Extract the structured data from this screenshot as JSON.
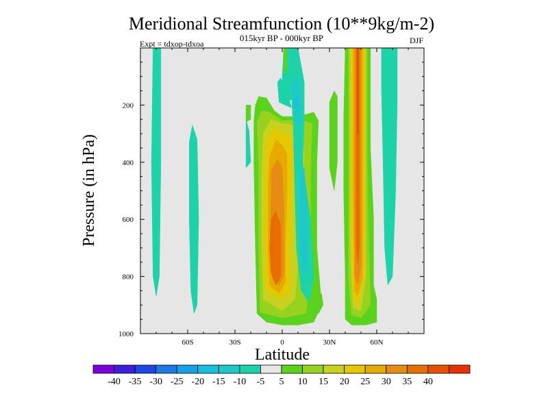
{
  "chart_data": {
    "type": "heatmap",
    "title": "Meridional Streamfunction (10**9kg/m-2)",
    "subtitle": "015kyr BP - 000kyr BP",
    "left_label": "Expt = tdxop-tdxoa",
    "right_label": "DJF",
    "xlabel": "Latitude",
    "ylabel": "Pressure (in hPa)",
    "xlim": [
      -90,
      90
    ],
    "ylim": [
      0,
      1000
    ],
    "y_reversed": true,
    "x_ticks": [
      {
        "value": -60,
        "label": "60S"
      },
      {
        "value": -30,
        "label": "30S"
      },
      {
        "value": 0,
        "label": "0"
      },
      {
        "value": 30,
        "label": "30N"
      },
      {
        "value": 60,
        "label": "60N"
      }
    ],
    "y_ticks": [
      {
        "value": 200,
        "label": "200"
      },
      {
        "value": 400,
        "label": "400"
      },
      {
        "value": 600,
        "label": "600"
      },
      {
        "value": 800,
        "label": "800"
      },
      {
        "value": 1000,
        "label": "1000"
      }
    ],
    "background_color": "#e6e6e6",
    "colorbar": {
      "colors": [
        "#7b00dc",
        "#3c1eda",
        "#1e46e6",
        "#1e78e6",
        "#14a0e6",
        "#19bedc",
        "#1ec8c8",
        "#1ed2aa",
        "#e6e6e6",
        "#5ad21e",
        "#96d21e",
        "#c8d21e",
        "#e6c800",
        "#e6aa00",
        "#e68c14",
        "#e66e00",
        "#e65000",
        "#e63200"
      ],
      "labels": [
        "-40",
        "-35",
        "-30",
        "-25",
        "-20",
        "-15",
        "-10",
        "-5",
        "5",
        "10",
        "15",
        "20",
        "25",
        "30",
        "35",
        "40"
      ]
    },
    "regions": [
      {
        "value": -7,
        "points": [
          [
            -82,
            0
          ],
          [
            -77,
            0
          ],
          [
            -77,
            400
          ],
          [
            -78,
            800
          ],
          [
            -80,
            870
          ],
          [
            -82,
            800
          ],
          [
            -83,
            400
          ]
        ]
      },
      {
        "value": -7,
        "points": [
          [
            -57,
            270
          ],
          [
            -54,
            320
          ],
          [
            -53,
            600
          ],
          [
            -54,
            900
          ],
          [
            -56,
            930
          ],
          [
            -58,
            850
          ],
          [
            -59,
            600
          ],
          [
            -59,
            330
          ]
        ]
      },
      {
        "value": -7,
        "points": [
          [
            -23,
            250
          ],
          [
            -21,
            290
          ],
          [
            -20,
            400
          ],
          [
            -23,
            420
          ]
        ]
      },
      {
        "value": 7,
        "points": [
          [
            -18,
            255
          ],
          [
            -17,
            200
          ],
          [
            -15,
            170
          ],
          [
            -10,
            175
          ],
          [
            -5,
            220
          ],
          [
            0,
            240
          ],
          [
            10,
            240
          ],
          [
            20,
            225
          ],
          [
            23,
            255
          ],
          [
            22,
            400
          ],
          [
            22,
            700
          ],
          [
            25,
            900
          ],
          [
            20,
            960
          ],
          [
            10,
            970
          ],
          [
            0,
            970
          ],
          [
            -10,
            960
          ],
          [
            -16,
            930
          ],
          [
            -17,
            700
          ],
          [
            -18,
            400
          ]
        ]
      },
      {
        "value": 12,
        "points": [
          [
            -16,
            260
          ],
          [
            -13,
            220
          ],
          [
            -8,
            225
          ],
          [
            0,
            255
          ],
          [
            12,
            250
          ],
          [
            19,
            265
          ],
          [
            18,
            420
          ],
          [
            18,
            800
          ],
          [
            15,
            930
          ],
          [
            0,
            945
          ],
          [
            -14,
            925
          ],
          [
            -15,
            700
          ],
          [
            -15,
            400
          ]
        ]
      },
      {
        "value": 17,
        "points": [
          [
            -12,
            300
          ],
          [
            -7,
            250
          ],
          [
            0,
            265
          ],
          [
            8,
            270
          ],
          [
            13,
            280
          ],
          [
            14,
            400
          ],
          [
            11,
            700
          ],
          [
            8,
            880
          ],
          [
            0,
            920
          ],
          [
            -12,
            880
          ],
          [
            -13,
            700
          ],
          [
            -13,
            450
          ]
        ]
      },
      {
        "value": 22,
        "points": [
          [
            -10,
            330
          ],
          [
            -5,
            280
          ],
          [
            0,
            300
          ],
          [
            5,
            310
          ],
          [
            7,
            360
          ],
          [
            6,
            500
          ],
          [
            5,
            700
          ],
          [
            5,
            850
          ],
          [
            0,
            880
          ],
          [
            -10,
            850
          ],
          [
            -11,
            700
          ],
          [
            -11,
            450
          ]
        ]
      },
      {
        "value": 27,
        "points": [
          [
            -8,
            380
          ],
          [
            -4,
            320
          ],
          [
            0,
            340
          ],
          [
            3,
            370
          ],
          [
            3,
            500
          ],
          [
            2,
            700
          ],
          [
            2,
            820
          ],
          [
            -2,
            860
          ],
          [
            -8,
            830
          ],
          [
            -9,
            700
          ],
          [
            -9,
            480
          ]
        ]
      },
      {
        "value": 32,
        "points": [
          [
            -7,
            430
          ],
          [
            -3,
            390
          ],
          [
            0,
            420
          ],
          [
            1,
            550
          ],
          [
            1,
            800
          ],
          [
            -2,
            830
          ],
          [
            -6,
            810
          ],
          [
            -8,
            700
          ],
          [
            -7,
            520
          ]
        ]
      },
      {
        "value": 37,
        "points": [
          [
            -7,
            600
          ],
          [
            -4,
            570
          ],
          [
            -1,
            620
          ],
          [
            -1,
            800
          ],
          [
            -4,
            830
          ],
          [
            -7,
            790
          ],
          [
            -8,
            700
          ]
        ]
      },
      {
        "value": -7,
        "points": [
          [
            1,
            0
          ],
          [
            10,
            0
          ],
          [
            14,
            120
          ],
          [
            14,
            250
          ],
          [
            13,
            400
          ],
          [
            18,
            600
          ],
          [
            20,
            800
          ],
          [
            17,
            890
          ],
          [
            12,
            850
          ],
          [
            9,
            700
          ],
          [
            8,
            500
          ],
          [
            7,
            280
          ],
          [
            6,
            180
          ],
          [
            1,
            200
          ],
          [
            0,
            100
          ]
        ]
      },
      {
        "value": -12,
        "points": [
          [
            6,
            130
          ],
          [
            10,
            100
          ],
          [
            12,
            180
          ],
          [
            12,
            270
          ],
          [
            9,
            260
          ],
          [
            7,
            200
          ]
        ]
      },
      {
        "value": -17,
        "points": [
          [
            8,
            180
          ],
          [
            10,
            170
          ],
          [
            10,
            200
          ],
          [
            8,
            210
          ]
        ]
      },
      {
        "value": -12,
        "points": [
          [
            11,
            430
          ],
          [
            14,
            420
          ],
          [
            16,
            600
          ],
          [
            16,
            780
          ],
          [
            13,
            790
          ],
          [
            11,
            650
          ]
        ]
      },
      {
        "value": -7,
        "points": [
          [
            -3,
            120
          ],
          [
            -1,
            105
          ],
          [
            3,
            150
          ],
          [
            6,
            210
          ],
          [
            -2,
            190
          ]
        ]
      },
      {
        "value": 7,
        "points": [
          [
            1,
            0
          ],
          [
            3,
            0
          ],
          [
            3,
            80
          ],
          [
            1,
            90
          ]
        ]
      },
      {
        "value": 7,
        "points": [
          [
            -20,
            200
          ],
          [
            -23,
            200
          ],
          [
            -23,
            260
          ],
          [
            -20,
            250
          ]
        ]
      },
      {
        "value": 7,
        "points": [
          [
            40,
            0
          ],
          [
            56,
            0
          ],
          [
            56,
            350
          ],
          [
            58,
            600
          ],
          [
            58,
            830
          ],
          [
            60,
            880
          ],
          [
            60,
            960
          ],
          [
            53,
            970
          ],
          [
            44,
            970
          ],
          [
            40,
            950
          ],
          [
            40,
            800
          ],
          [
            39,
            500
          ],
          [
            39,
            250
          ]
        ]
      },
      {
        "value": 12,
        "points": [
          [
            42,
            0
          ],
          [
            54,
            0
          ],
          [
            54,
            400
          ],
          [
            55,
            700
          ],
          [
            56,
            900
          ],
          [
            50,
            945
          ],
          [
            44,
            935
          ],
          [
            42,
            800
          ],
          [
            42,
            400
          ]
        ]
      },
      {
        "value": 17,
        "points": [
          [
            43,
            0
          ],
          [
            53,
            0
          ],
          [
            53,
            500
          ],
          [
            53,
            800
          ],
          [
            50,
            920
          ],
          [
            45,
            910
          ],
          [
            43,
            700
          ],
          [
            43,
            300
          ]
        ]
      },
      {
        "value": 22,
        "points": [
          [
            44,
            0
          ],
          [
            52,
            0
          ],
          [
            52,
            800
          ],
          [
            48,
            900
          ],
          [
            45,
            880
          ],
          [
            44,
            600
          ]
        ]
      },
      {
        "value": 27,
        "points": [
          [
            45,
            0
          ],
          [
            51,
            0
          ],
          [
            51,
            800
          ],
          [
            48,
            870
          ],
          [
            46,
            850
          ],
          [
            45,
            500
          ]
        ]
      },
      {
        "value": 32,
        "points": [
          [
            46,
            0
          ],
          [
            50,
            0
          ],
          [
            50,
            770
          ],
          [
            48,
            830
          ],
          [
            46,
            800
          ]
        ]
      },
      {
        "value": 37,
        "points": [
          [
            47,
            0
          ],
          [
            49,
            0
          ],
          [
            49,
            700
          ],
          [
            48,
            760
          ],
          [
            47,
            700
          ]
        ]
      },
      {
        "value": 42,
        "points": [
          [
            47.5,
            0
          ],
          [
            48.5,
            0
          ],
          [
            48.5,
            300
          ],
          [
            47.5,
            300
          ]
        ]
      },
      {
        "value": 7,
        "points": [
          [
            30,
            190
          ],
          [
            33,
            150
          ],
          [
            35,
            170
          ],
          [
            35,
            400
          ],
          [
            33,
            500
          ],
          [
            30,
            420
          ]
        ]
      },
      {
        "value": 7,
        "points": [
          [
            22,
            870
          ],
          [
            25,
            860
          ],
          [
            26,
            900
          ],
          [
            23,
            930
          ]
        ]
      },
      {
        "value": -7,
        "points": [
          [
            63,
            0
          ],
          [
            73,
            0
          ],
          [
            73,
            200
          ],
          [
            72,
            500
          ],
          [
            70,
            800
          ],
          [
            67,
            830
          ],
          [
            65,
            700
          ],
          [
            64,
            400
          ],
          [
            63,
            150
          ]
        ]
      }
    ]
  }
}
